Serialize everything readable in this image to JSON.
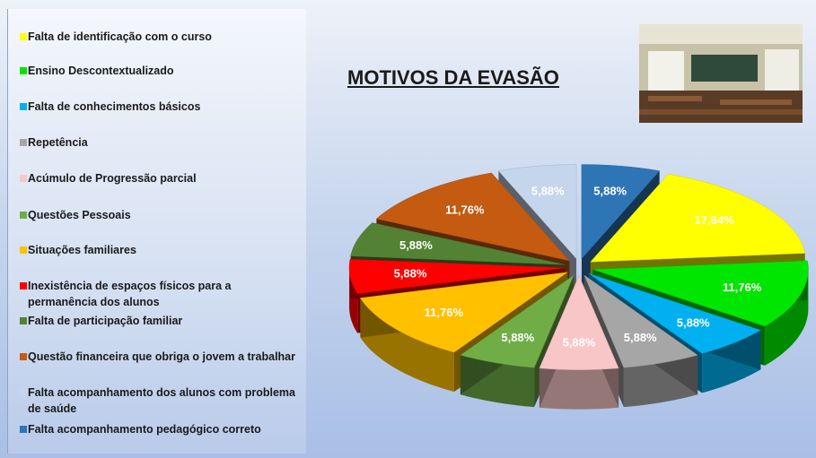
{
  "chart_data": {
    "type": "pie",
    "title": "MOTIVOS DA EVASÃO",
    "categories": [
      "Falta de identificação com o curso",
      "Ensino Descontextualizado",
      "Falta de conhecimentos básicos",
      "Repetência",
      "Acúmulo de Progressão parcial",
      "Questões Pessoais",
      "Situações familiares",
      "Inexistência de espaços físicos para a permanência dos alunos",
      "Falta de participação familiar",
      "Questão financeira que obriga o jovem a trabalhar",
      "Falta acompanhamento dos alunos com problema de saúde",
      "Falta acompanhamento pedagógico correto"
    ],
    "values": [
      17.64,
      11.76,
      5.88,
      5.88,
      5.88,
      5.88,
      11.76,
      5.88,
      5.88,
      11.76,
      5.88,
      5.88
    ],
    "value_labels": [
      "17,64%",
      "11,76%",
      "5,88%",
      "5,88%",
      "5,88%",
      "5,88%",
      "11,76%",
      "5,88%",
      "5,88%",
      "11,76%",
      "5,88%",
      "5,88%"
    ],
    "colors": [
      "#ffff00",
      "#00e600",
      "#00b0f0",
      "#a6a6a6",
      "#f8c6c6",
      "#70ad47",
      "#ffc000",
      "#ff0000",
      "#548235",
      "#c55a11",
      "#c5d5ec",
      "#2e75b6"
    ]
  }
}
